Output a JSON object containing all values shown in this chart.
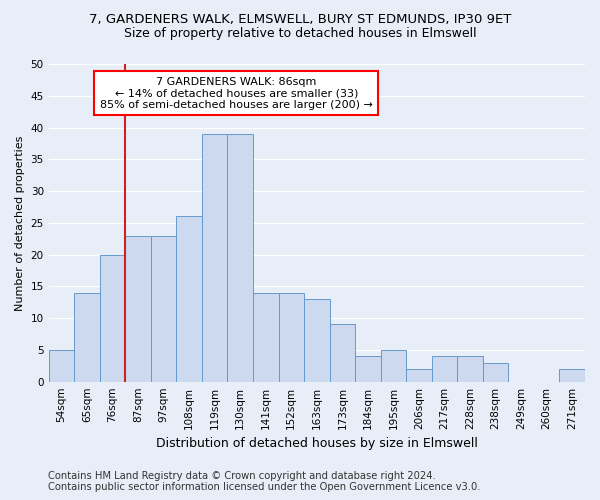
{
  "title": "7, GARDENERS WALK, ELMSWELL, BURY ST EDMUNDS, IP30 9ET",
  "subtitle": "Size of property relative to detached houses in Elmswell",
  "xlabel": "Distribution of detached houses by size in Elmswell",
  "ylabel": "Number of detached properties",
  "bar_labels": [
    "54sqm",
    "65sqm",
    "76sqm",
    "87sqm",
    "97sqm",
    "108sqm",
    "119sqm",
    "130sqm",
    "141sqm",
    "152sqm",
    "163sqm",
    "173sqm",
    "184sqm",
    "195sqm",
    "206sqm",
    "217sqm",
    "228sqm",
    "238sqm",
    "249sqm",
    "260sqm",
    "271sqm"
  ],
  "bar_values": [
    5,
    14,
    20,
    23,
    23,
    26,
    39,
    39,
    14,
    14,
    13,
    9,
    4,
    5,
    2,
    4,
    4,
    3,
    0,
    0,
    2
  ],
  "bar_color": "#ccd9ee",
  "bar_edge_color": "#6699cc",
  "annotation_line1": "7 GARDENERS WALK: 86sqm",
  "annotation_line2": "← 14% of detached houses are smaller (33)",
  "annotation_line3": "85% of semi-detached houses are larger (200) →",
  "vline_x_label": "87sqm",
  "vline_color": "#cc2222",
  "ylim": [
    0,
    50
  ],
  "yticks": [
    0,
    5,
    10,
    15,
    20,
    25,
    30,
    35,
    40,
    45,
    50
  ],
  "bg_color": "#e8eef8",
  "grid_color": "#ffffff",
  "title_fontsize": 9.5,
  "subtitle_fontsize": 9,
  "xlabel_fontsize": 9,
  "ylabel_fontsize": 8,
  "tick_fontsize": 7.5,
  "annotation_fontsize": 8,
  "footer_fontsize": 7.2,
  "footer_line1": "Contains HM Land Registry data © Crown copyright and database right 2024.",
  "footer_line2": "Contains public sector information licensed under the Open Government Licence v3.0."
}
